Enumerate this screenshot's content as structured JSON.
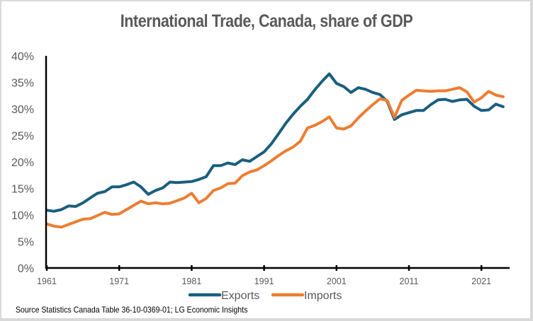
{
  "chart_data": {
    "type": "line",
    "title": "International Trade, Canada, share of GDP",
    "xlabel": "",
    "ylabel": "",
    "x_start_year": 1961,
    "x_end_year": 2024,
    "xticks": [
      "1961",
      "1971",
      "1981",
      "1991",
      "2001",
      "2011",
      "2021"
    ],
    "yticks": [
      "0%",
      "5%",
      "10%",
      "15%",
      "20%",
      "25%",
      "30%",
      "35%",
      "40%"
    ],
    "ylim": [
      0,
      40
    ],
    "grid": false,
    "legend_position": "bottom",
    "series": [
      {
        "name": "Exports",
        "color": "#1a5e80",
        "values": [
          10.9,
          10.7,
          11.0,
          11.7,
          11.6,
          12.3,
          13.2,
          14.1,
          14.4,
          15.3,
          15.3,
          15.7,
          16.2,
          15.3,
          13.9,
          14.6,
          15.1,
          16.2,
          16.1,
          16.2,
          16.3,
          16.7,
          17.2,
          19.3,
          19.3,
          19.8,
          19.5,
          20.4,
          20.1,
          21.0,
          21.9,
          23.4,
          25.3,
          27.3,
          29.0,
          30.5,
          31.8,
          33.6,
          35.2,
          36.6,
          34.8,
          34.2,
          33.1,
          34.0,
          33.7,
          33.1,
          32.7,
          31.4,
          28.0,
          28.9,
          29.3,
          29.7,
          29.7,
          30.8,
          31.7,
          31.8,
          31.4,
          31.7,
          31.8,
          30.5,
          29.7,
          29.8,
          30.9,
          30.4
        ]
      },
      {
        "name": "Imports",
        "color": "#ed7d31",
        "values": [
          8.3,
          7.9,
          7.7,
          8.2,
          8.7,
          9.2,
          9.3,
          9.9,
          10.5,
          10.1,
          10.2,
          11.0,
          11.8,
          12.6,
          12.1,
          12.3,
          12.1,
          12.2,
          12.7,
          13.2,
          14.1,
          12.3,
          13.1,
          14.6,
          15.1,
          15.9,
          16.0,
          17.4,
          18.1,
          18.5,
          19.3,
          20.2,
          21.2,
          22.1,
          22.8,
          23.9,
          26.4,
          26.9,
          27.6,
          28.5,
          26.4,
          26.2,
          26.8,
          28.3,
          29.6,
          30.8,
          31.9,
          31.6,
          28.4,
          31.6,
          32.6,
          33.5,
          33.4,
          33.3,
          33.4,
          33.4,
          33.7,
          34.0,
          33.2,
          31.3,
          32.1,
          33.3,
          32.6,
          32.3
        ]
      }
    ]
  },
  "source_note": "Source Statistics Canada Table 36-10-0369-01; LG Economic Insights"
}
